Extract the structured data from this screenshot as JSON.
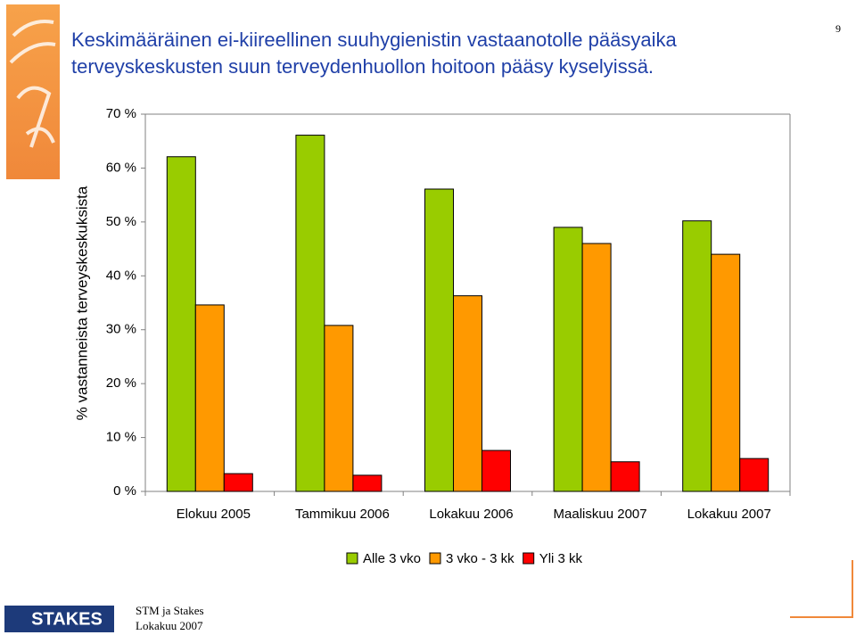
{
  "slide": {
    "page_number": "9",
    "footer": [
      "STM ja Stakes",
      "Lokakuu 2007"
    ],
    "logo": "STAKES"
  },
  "chart_data": {
    "type": "bar",
    "title": [
      "Keskimääräinen ei-kiireellinen suuhygienistin vastaanotolle pääsyaika",
      "terveyskeskusten suun terveydenhuollon hoitoon pääsy kyselyissä."
    ],
    "y_label": "% vastanneista terveyskeskuksista",
    "categories": [
      "Elokuu 2005",
      "Tammikuu 2006",
      "Lokakuu 2006",
      "Maaliskuu 2007",
      "Lokakuu 2007"
    ],
    "series": [
      {
        "name": "Alle 3 vko",
        "color": "#99cc00",
        "values": [
          62.1,
          66.1,
          56.1,
          49.0,
          50.2
        ]
      },
      {
        "name": "3 vko - 3 kk",
        "color": "#ff9900",
        "values": [
          34.6,
          30.8,
          36.3,
          46.0,
          44.0
        ]
      },
      {
        "name": "Yli 3 kk",
        "color": "#ff0000",
        "values": [
          3.3,
          3.0,
          7.6,
          5.5,
          6.1
        ]
      }
    ],
    "ylim": [
      0,
      70
    ],
    "yticks": [
      {
        "value": 0,
        "label": "0 %"
      },
      {
        "value": 10,
        "label": "10 %"
      },
      {
        "value": 20,
        "label": "20 %"
      },
      {
        "value": 30,
        "label": "30 %"
      },
      {
        "value": 40,
        "label": "40 %"
      },
      {
        "value": 50,
        "label": "50 %"
      },
      {
        "value": 60,
        "label": "60 %"
      },
      {
        "value": 70,
        "label": "70 %"
      }
    ],
    "grid": false,
    "legend": "bottom"
  }
}
